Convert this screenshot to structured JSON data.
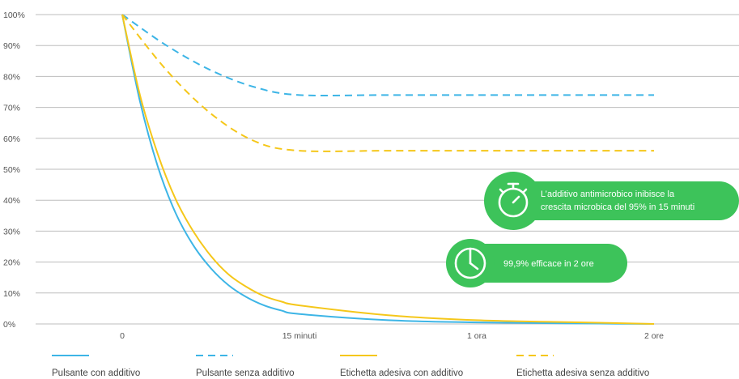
{
  "chart_data": {
    "type": "line",
    "title": "",
    "xlabel": "",
    "ylabel": "",
    "x_categories": [
      "0",
      "15 minuti",
      "1 ora",
      "2 ore"
    ],
    "y_ticks": [
      "100%",
      "90%",
      "80%",
      "70%",
      "60%",
      "50%",
      "40%",
      "30%",
      "20%",
      "10%",
      "0%"
    ],
    "ylim": [
      0,
      100
    ],
    "grid": true,
    "legend_position": "bottom",
    "series": [
      {
        "name": "Pulsante con additivo",
        "style": "solid",
        "color": "#3db5e6",
        "x": [
          0,
          0.1,
          0.2,
          0.3,
          0.4,
          0.5,
          0.6,
          0.7,
          0.8,
          0.9,
          1,
          1.5,
          2,
          2.5,
          3
        ],
        "y": [
          100,
          72,
          51,
          36,
          25.5,
          18,
          12.5,
          8.7,
          6,
          4.3,
          3.2,
          1.2,
          0.5,
          0.2,
          0
        ]
      },
      {
        "name": "Pulsante senza additivo",
        "style": "dashed",
        "color": "#3db5e6",
        "x": [
          0,
          0.25,
          0.5,
          0.75,
          1,
          1.5,
          2,
          2.5,
          3
        ],
        "y": [
          100,
          90,
          82,
          76.5,
          74,
          74,
          74,
          74,
          74
        ]
      },
      {
        "name": "Etichetta adesiva con additivo",
        "style": "solid",
        "color": "#f5c71a",
        "x": [
          0,
          0.1,
          0.2,
          0.3,
          0.4,
          0.5,
          0.6,
          0.7,
          0.8,
          0.9,
          1,
          1.5,
          2,
          2.5,
          3
        ],
        "y": [
          100,
          74,
          55,
          40.5,
          30,
          22,
          16,
          12,
          9,
          7.2,
          6,
          2.8,
          1.2,
          0.6,
          0
        ]
      },
      {
        "name": "Etichetta adesiva senza additivo",
        "style": "dashed",
        "color": "#f5c71a",
        "x": [
          0,
          0.25,
          0.5,
          0.75,
          1,
          1.5,
          2,
          2.5,
          3
        ],
        "y": [
          100,
          82,
          68,
          59,
          56,
          56,
          56,
          56,
          56
        ]
      }
    ],
    "annotations": [
      {
        "text_lines": [
          "L’additivo antimicrobico inibisce la",
          "crescita microbica del 95% in 15 minuti"
        ],
        "icon": "stopwatch-icon",
        "color": "#3dc35a"
      },
      {
        "text_lines": [
          "99,9% efficace in 2 ore"
        ],
        "icon": "clock-icon",
        "color": "#3dc35a"
      }
    ]
  }
}
